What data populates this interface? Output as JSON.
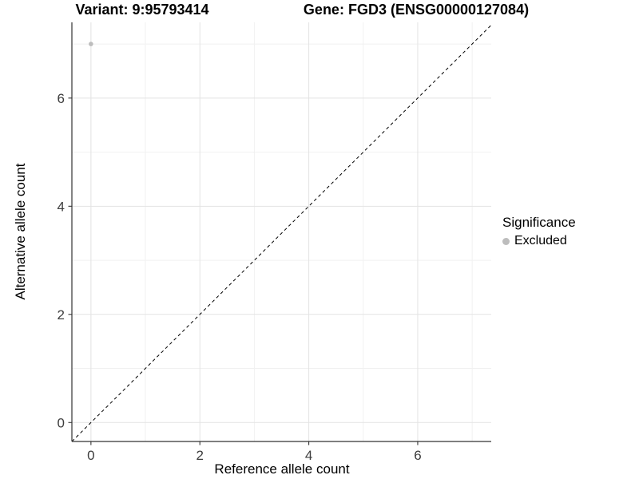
{
  "chart_data": {
    "type": "scatter",
    "titles": {
      "variant": "Variant: 9:95793414",
      "gene": "Gene: FGD3 (ENSG00000127084)"
    },
    "xlabel": "Reference allele count",
    "ylabel": "Alternative allele count",
    "xlim": [
      -0.35,
      7.35
    ],
    "ylim": [
      -0.35,
      7.4
    ],
    "x_ticks": [
      0,
      2,
      4,
      6
    ],
    "y_ticks": [
      0,
      2,
      4,
      6
    ],
    "x_minor_ticks": [
      1,
      3,
      5,
      7
    ],
    "y_minor_ticks": [
      1,
      3,
      5,
      7
    ],
    "grid": true,
    "identity_line": {
      "style": "dashed",
      "equation": "y = x",
      "color": "#000000"
    },
    "series": [
      {
        "name": "Excluded",
        "color": "#bdbdbd",
        "points": [
          {
            "x": 0,
            "y": 7
          }
        ]
      }
    ],
    "legend": {
      "position": "right",
      "title": "Significance",
      "items": [
        {
          "label": "Excluded",
          "color": "#bdbdbd"
        }
      ]
    },
    "colors": {
      "background": "#ffffff",
      "grid_major": "#e3e3e3",
      "grid_minor": "#f1f1f1",
      "axis_line": "#333333",
      "tick_label": "#3d3d3d",
      "point": "#bdbdbd"
    }
  }
}
